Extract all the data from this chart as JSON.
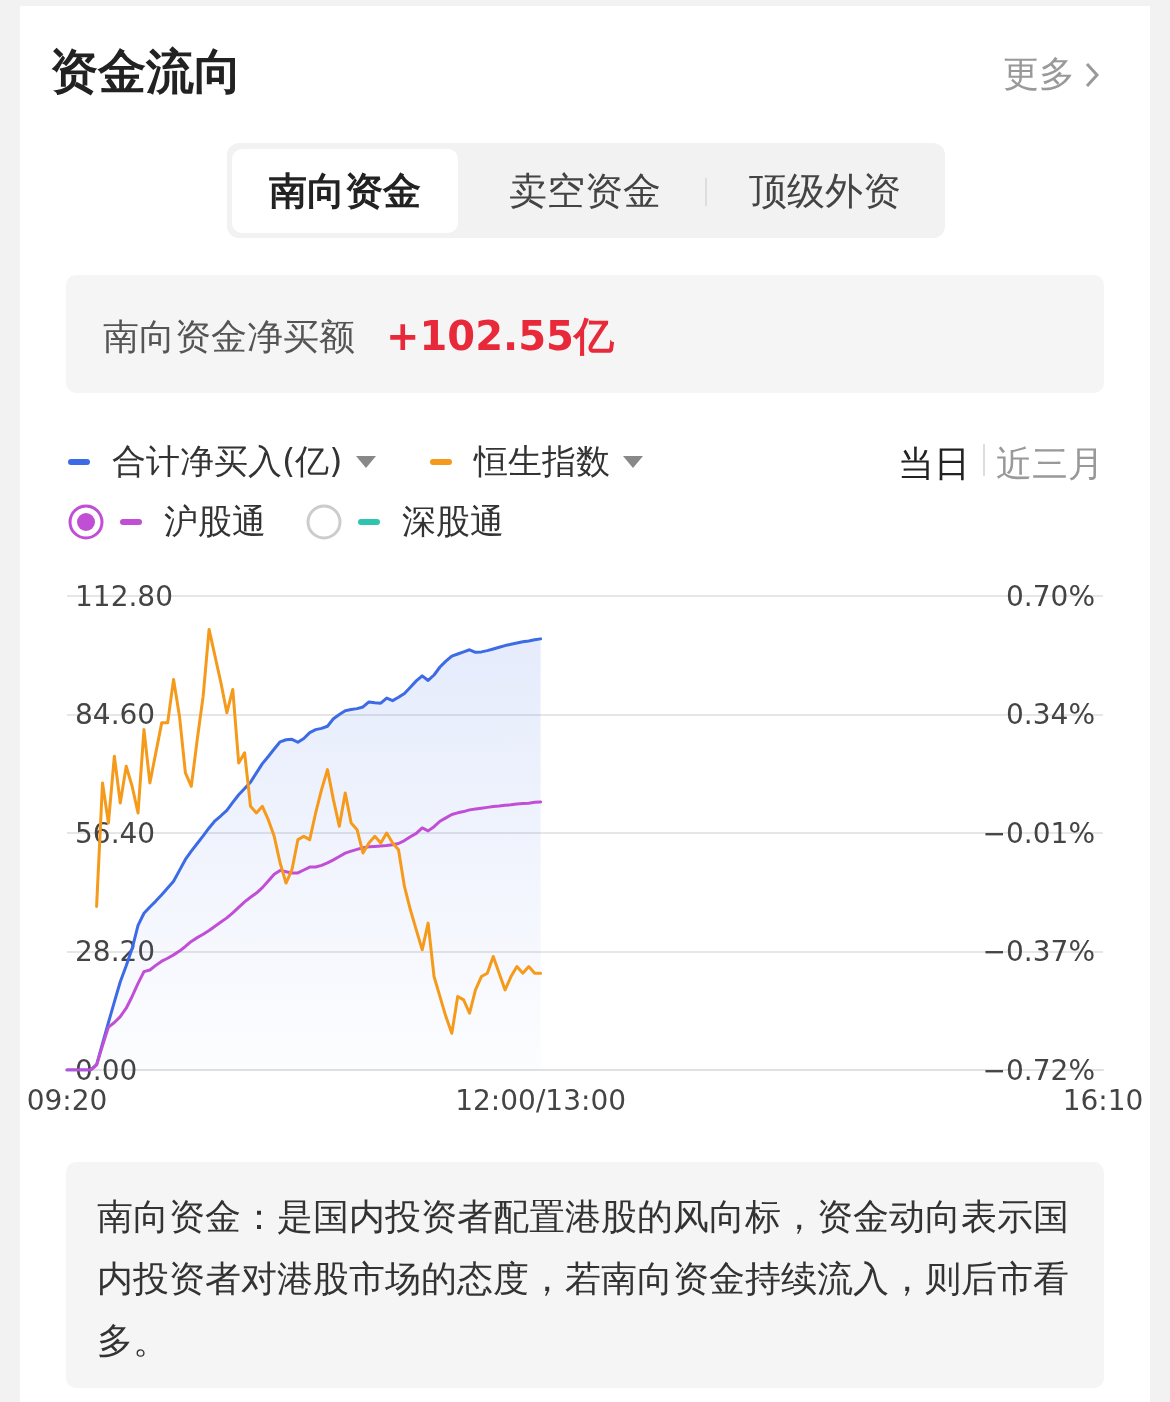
{
  "chart_data": {
    "type": "line",
    "title": "资金流向",
    "annotations": [
      "更多",
      "南向资金",
      "卖空资金",
      "顶级外资",
      "南向资金净买额",
      "+102.55亿",
      "当日",
      "近三月",
      "南向资金：是国内投资者配置港股的风向标，资金动向表示国内投资者对港股市场的态度，若南向资金持续流入，则后市看多。"
    ],
    "categories": [
      "09:20",
      null,
      null,
      null,
      null,
      null,
      null,
      null,
      null,
      null,
      null,
      null,
      null,
      null,
      null,
      null,
      null,
      null,
      null,
      null,
      null,
      null,
      null,
      null,
      null,
      null,
      null,
      null,
      null,
      null,
      null,
      null,
      null,
      null,
      null,
      null,
      null,
      null,
      null,
      null,
      null,
      null,
      null,
      null,
      null,
      null,
      null,
      null,
      null,
      null,
      null,
      null,
      null,
      null,
      null,
      null,
      null,
      null,
      null,
      null,
      null,
      null,
      null,
      null,
      null,
      null,
      null,
      null,
      null,
      null,
      null,
      null,
      null,
      null,
      null,
      null,
      null,
      null,
      null,
      null,
      "12:00/13:00",
      null,
      null,
      null,
      null,
      null,
      null,
      null,
      null,
      null,
      null,
      null,
      null,
      null,
      null,
      null,
      null,
      null,
      null,
      null,
      null,
      null,
      null,
      null,
      null,
      null,
      null,
      null,
      null,
      null,
      null,
      null,
      null,
      null,
      null,
      null,
      null,
      null,
      null,
      null,
      null,
      null,
      null,
      null,
      null,
      null,
      null,
      null,
      null,
      null,
      null,
      null,
      null,
      null,
      null,
      null,
      null,
      null,
      null,
      null,
      null,
      null,
      null,
      null,
      null,
      null,
      null,
      null,
      null,
      null,
      null,
      null,
      null,
      null,
      null,
      null,
      null,
      null,
      null,
      null,
      null,
      null,
      null,
      null,
      null,
      null,
      null,
      null,
      null,
      null,
      null,
      null,
      null,
      null,
      null,
      "16:10"
    ],
    "ylim": [
      0,
      112.8
    ],
    "yticks": [
      {
        "value": 0,
        "label": "0.00"
      },
      {
        "value": 28.2,
        "label": "28.20"
      },
      {
        "value": 56.4,
        "label": "56.40"
      },
      {
        "value": 84.6,
        "label": "84.60"
      },
      {
        "value": 112.8,
        "label": "112.80"
      }
    ],
    "y2lim": [
      -0.72,
      0.7
    ],
    "y2ticks": [
      {
        "value": -0.72,
        "label": "−0.72%"
      },
      {
        "value": -0.365,
        "label": "−0.37%"
      },
      {
        "value": -0.01,
        "label": "−0.01%"
      },
      {
        "value": 0.345,
        "label": "0.34%"
      },
      {
        "value": 0.7,
        "label": "0.70%"
      }
    ],
    "grid": "y",
    "legend": "top left",
    "marker": "none",
    "series": [
      {
        "name": "合计净买入(亿)",
        "type": "area",
        "color": "#3d6be6",
        "values": [
          0,
          0,
          0,
          0,
          0,
          1.3,
          6.3,
          11.3,
          16.2,
          21.0,
          24.8,
          28.9,
          34.4,
          37.3,
          38.8,
          40.2,
          41.7,
          43.3,
          44.9,
          47.5,
          50.1,
          52.1,
          53.9,
          55.7,
          57.6,
          59.3,
          60.5,
          61.8,
          63.7,
          65.5,
          67.0,
          68.5,
          70.7,
          72.9,
          74.6,
          76.4,
          78.1,
          78.6,
          78.7,
          78.0,
          78.9,
          80.3,
          81.0,
          81.3,
          81.8,
          83.6,
          84.6,
          85.5,
          85.8,
          86.0,
          86.4,
          87.6,
          87.4,
          87.3,
          88.5,
          87.9,
          88.7,
          89.6,
          91.1,
          92.6,
          93.8,
          92.7,
          94.0,
          95.9,
          97.3,
          98.5,
          99.0,
          99.5,
          100.0,
          99.4,
          99.5,
          99.8,
          100.2,
          100.6,
          101.0,
          101.3,
          101.6,
          101.9,
          102.1,
          102.4,
          102.6,
          null,
          null,
          null,
          null,
          null,
          null,
          null,
          null,
          null,
          null,
          null,
          null,
          null,
          null,
          null,
          null,
          null,
          null,
          null,
          null,
          null,
          null,
          null,
          null,
          null,
          null,
          null,
          null,
          null,
          null,
          null,
          null,
          null,
          null,
          null,
          null,
          null,
          null,
          null,
          null,
          null,
          null,
          null,
          null,
          null,
          null,
          null,
          null,
          null,
          null,
          null,
          null,
          null,
          null,
          null,
          null,
          null,
          null,
          null,
          null,
          null,
          null,
          null,
          null,
          null,
          null,
          null,
          null,
          null,
          null,
          null,
          null,
          null,
          null,
          null,
          null,
          null,
          null,
          null,
          null,
          null,
          null,
          null,
          null,
          null,
          null,
          null,
          null,
          null,
          null,
          null,
          null,
          null,
          null,
          null
        ]
      },
      {
        "name": "恒生指数",
        "type": "line",
        "axis": "y2",
        "color": "#f59a1b",
        "values": [
          null,
          null,
          null,
          null,
          null,
          -0.23,
          0.14,
          0.02,
          0.22,
          0.08,
          0.19,
          0.13,
          0.05,
          0.3,
          0.14,
          0.23,
          0.32,
          0.32,
          0.45,
          0.34,
          0.17,
          0.13,
          0.27,
          0.4,
          0.6,
          0.52,
          0.44,
          0.35,
          0.42,
          0.2,
          0.23,
          0.07,
          0.05,
          0.07,
          0.03,
          -0.02,
          -0.1,
          -0.16,
          -0.12,
          -0.03,
          -0.02,
          -0.03,
          0.05,
          0.12,
          0.18,
          0.09,
          0.01,
          0.11,
          0.02,
          0.0,
          -0.07,
          -0.04,
          -0.02,
          -0.04,
          -0.01,
          -0.04,
          -0.06,
          -0.17,
          -0.24,
          -0.3,
          -0.36,
          -0.28,
          -0.44,
          -0.5,
          -0.56,
          -0.61,
          -0.5,
          -0.51,
          -0.55,
          -0.48,
          -0.44,
          -0.43,
          -0.38,
          -0.43,
          -0.48,
          -0.44,
          -0.41,
          -0.43,
          -0.41,
          -0.43,
          -0.43,
          null,
          null,
          null,
          null,
          null,
          null,
          null,
          null,
          null,
          null,
          null,
          null,
          null,
          null,
          null,
          null,
          null,
          null,
          null,
          null,
          null,
          null,
          null,
          null,
          null,
          null,
          null,
          null,
          null,
          null,
          null,
          null,
          null,
          null,
          null,
          null,
          null,
          null,
          null,
          null,
          null,
          null,
          null,
          null,
          null,
          null,
          null,
          null,
          null,
          null,
          null,
          null,
          null,
          null,
          null,
          null,
          null,
          null,
          null,
          null,
          null,
          null,
          null,
          null,
          null,
          null,
          null,
          null,
          null,
          null,
          null,
          null,
          null,
          null,
          null,
          null,
          null,
          null,
          null,
          null,
          null,
          null,
          null,
          null,
          null,
          null,
          null,
          null,
          null,
          null,
          null,
          null,
          null,
          null,
          null
        ]
      },
      {
        "name": "沪股通",
        "type": "line",
        "color": "#c14fd6",
        "values": [
          0,
          0,
          0,
          0,
          0,
          1.2,
          5.8,
          10.2,
          11.3,
          12.7,
          14.7,
          17.5,
          20.6,
          23.4,
          23.8,
          24.9,
          25.9,
          26.6,
          27.4,
          28.3,
          29.4,
          30.6,
          31.5,
          32.3,
          33.2,
          34.2,
          35.2,
          36.2,
          37.4,
          38.7,
          40.0,
          41.1,
          42.1,
          43.4,
          45.0,
          46.6,
          47.5,
          47.2,
          46.9,
          46.9,
          47.6,
          48.3,
          48.3,
          48.7,
          49.3,
          50.0,
          50.8,
          51.6,
          52.1,
          52.5,
          52.9,
          53.1,
          53.2,
          53.3,
          53.4,
          53.6,
          53.9,
          54.6,
          55.5,
          56.3,
          57.6,
          56.9,
          57.9,
          59.2,
          60.0,
          60.8,
          61.2,
          61.5,
          61.9,
          62.1,
          62.3,
          62.5,
          62.7,
          62.8,
          63.0,
          63.1,
          63.3,
          63.4,
          63.5,
          63.7,
          63.8,
          null,
          null,
          null,
          null,
          null,
          null,
          null,
          null,
          null,
          null,
          null,
          null,
          null,
          null,
          null,
          null,
          null,
          null,
          null,
          null,
          null,
          null,
          null,
          null,
          null,
          null,
          null,
          null,
          null,
          null,
          null,
          null,
          null,
          null,
          null,
          null,
          null,
          null,
          null,
          null,
          null,
          null,
          null,
          null,
          null,
          null,
          null,
          null,
          null,
          null,
          null,
          null,
          null,
          null,
          null,
          null,
          null,
          null,
          null,
          null,
          null,
          null,
          null,
          null,
          null,
          null,
          null,
          null,
          null,
          null,
          null,
          null,
          null,
          null,
          null,
          null,
          null,
          null,
          null,
          null,
          null,
          null,
          null,
          null,
          null,
          null,
          null,
          null,
          null,
          null,
          null,
          null,
          null,
          null,
          null
        ]
      },
      {
        "name": "深股通",
        "type": "line",
        "color": "#2ec4b0",
        "values": [
          null,
          null,
          null,
          null,
          null,
          null,
          null,
          null,
          null,
          null,
          null,
          null,
          null,
          null,
          null,
          null,
          null,
          null,
          null,
          null,
          null,
          null,
          null,
          null,
          null,
          null,
          null,
          null,
          null,
          null,
          null,
          null,
          null,
          null,
          null,
          null,
          null,
          null,
          null,
          null,
          null,
          null,
          null,
          null,
          null,
          null,
          null,
          null,
          null,
          null,
          null,
          null,
          null,
          null,
          null,
          null,
          null,
          null,
          null,
          null,
          null,
          null,
          null,
          null,
          null,
          null,
          null,
          null,
          null,
          null,
          null,
          null,
          null,
          null,
          null,
          null,
          null,
          null,
          null,
          null,
          null,
          null,
          null,
          null,
          null,
          null,
          null,
          null,
          null,
          null,
          null,
          null,
          null,
          null,
          null,
          null,
          null,
          null,
          null,
          null,
          null,
          null,
          null,
          null,
          null,
          null,
          null,
          null,
          null,
          null,
          null,
          null,
          null,
          null,
          null,
          null,
          null,
          null,
          null,
          null,
          null,
          null,
          null,
          null,
          null,
          null,
          null,
          null,
          null,
          null,
          null,
          null,
          null,
          null,
          null,
          null,
          null,
          null,
          null,
          null,
          null,
          null,
          null,
          null,
          null,
          null,
          null,
          null,
          null,
          null,
          null,
          null,
          null,
          null,
          null,
          null,
          null,
          null,
          null,
          null,
          null,
          null,
          null,
          null,
          null,
          null,
          null,
          null,
          null,
          null,
          null,
          null,
          null,
          null,
          null,
          null
        ]
      }
    ]
  }
}
